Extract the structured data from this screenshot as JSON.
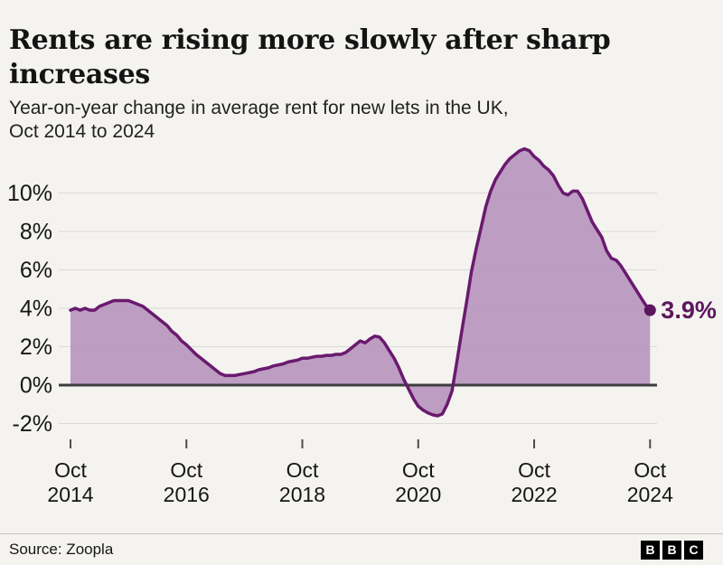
{
  "header": {
    "title_lines": [
      "Rents are rising more slowly after sharp",
      "increases"
    ],
    "subtitle_lines": [
      "Year-on-year change in average rent for new lets in the UK,",
      "Oct 2014 to 2024"
    ]
  },
  "footer": {
    "source": "Source: Zoopla",
    "logo_letters": [
      "B",
      "B",
      "C"
    ]
  },
  "chart_data": {
    "type": "area",
    "title": "Rents are rising more slowly after sharp increases",
    "subtitle": "Year-on-year change in average rent for new lets in the UK, Oct 2014 to 2024",
    "unit": "%",
    "x_axis": {
      "start": "Oct 2014",
      "end": "Oct 2024",
      "interval": "monthly",
      "ticks": [
        {
          "month_index": 0,
          "label": "Oct 2014"
        },
        {
          "month_index": 24,
          "label": "Oct 2016"
        },
        {
          "month_index": 48,
          "label": "Oct 2018"
        },
        {
          "month_index": 72,
          "label": "Oct 2020"
        },
        {
          "month_index": 96,
          "label": "Oct 2022"
        },
        {
          "month_index": 120,
          "label": "Oct 2024"
        }
      ]
    },
    "y_axis": {
      "ticks": [
        {
          "value": 10,
          "label": "10%"
        },
        {
          "value": 8,
          "label": "8%"
        },
        {
          "value": 6,
          "label": "6%"
        },
        {
          "value": 4,
          "label": "4%"
        },
        {
          "value": 2,
          "label": "2%"
        },
        {
          "value": 0,
          "label": "0%"
        },
        {
          "value": -2,
          "label": "-2%"
        }
      ],
      "ylim": [
        -2.9,
        12.9
      ],
      "grid": true
    },
    "series": [
      {
        "name": "Year-on-year change in average rent",
        "values": [
          3.9,
          4.0,
          3.9,
          4.0,
          3.9,
          3.9,
          4.1,
          4.2,
          4.3,
          4.4,
          4.4,
          4.4,
          4.4,
          4.3,
          4.2,
          4.1,
          3.9,
          3.7,
          3.5,
          3.3,
          3.1,
          2.8,
          2.6,
          2.3,
          2.1,
          1.85,
          1.6,
          1.4,
          1.2,
          1.0,
          0.8,
          0.6,
          0.5,
          0.5,
          0.5,
          0.55,
          0.6,
          0.65,
          0.7,
          0.8,
          0.85,
          0.9,
          1.0,
          1.05,
          1.1,
          1.2,
          1.25,
          1.3,
          1.4,
          1.4,
          1.45,
          1.5,
          1.5,
          1.55,
          1.55,
          1.6,
          1.6,
          1.7,
          1.9,
          2.1,
          2.3,
          2.2,
          2.4,
          2.55,
          2.5,
          2.2,
          1.8,
          1.4,
          0.9,
          0.3,
          -0.2,
          -0.7,
          -1.1,
          -1.3,
          -1.45,
          -1.55,
          -1.6,
          -1.5,
          -1.0,
          -0.3,
          1.2,
          2.8,
          4.3,
          5.9,
          7.1,
          8.2,
          9.3,
          10.1,
          10.7,
          11.1,
          11.5,
          11.8,
          12.0,
          12.2,
          12.3,
          12.2,
          11.9,
          11.7,
          11.4,
          11.2,
          10.9,
          10.4,
          10.0,
          9.9,
          10.1,
          10.1,
          9.7,
          9.1,
          8.5,
          8.1,
          7.7,
          7.0,
          6.6,
          6.5,
          6.2,
          5.8,
          5.4,
          5.0,
          4.6,
          4.2,
          3.9
        ]
      }
    ],
    "end_label": "3.9%",
    "last_value": 3.9,
    "peak_value": 12.3,
    "colors": {
      "line": "#6a1a6e",
      "fill": "#b794bd",
      "end_label": "#5d165e",
      "axis": "#3d3d3d",
      "grid": "#dcdad6",
      "tick": "#4d4d4d",
      "label_text": "#161616",
      "background": "#f4f3f0"
    },
    "legend_position": "none"
  }
}
